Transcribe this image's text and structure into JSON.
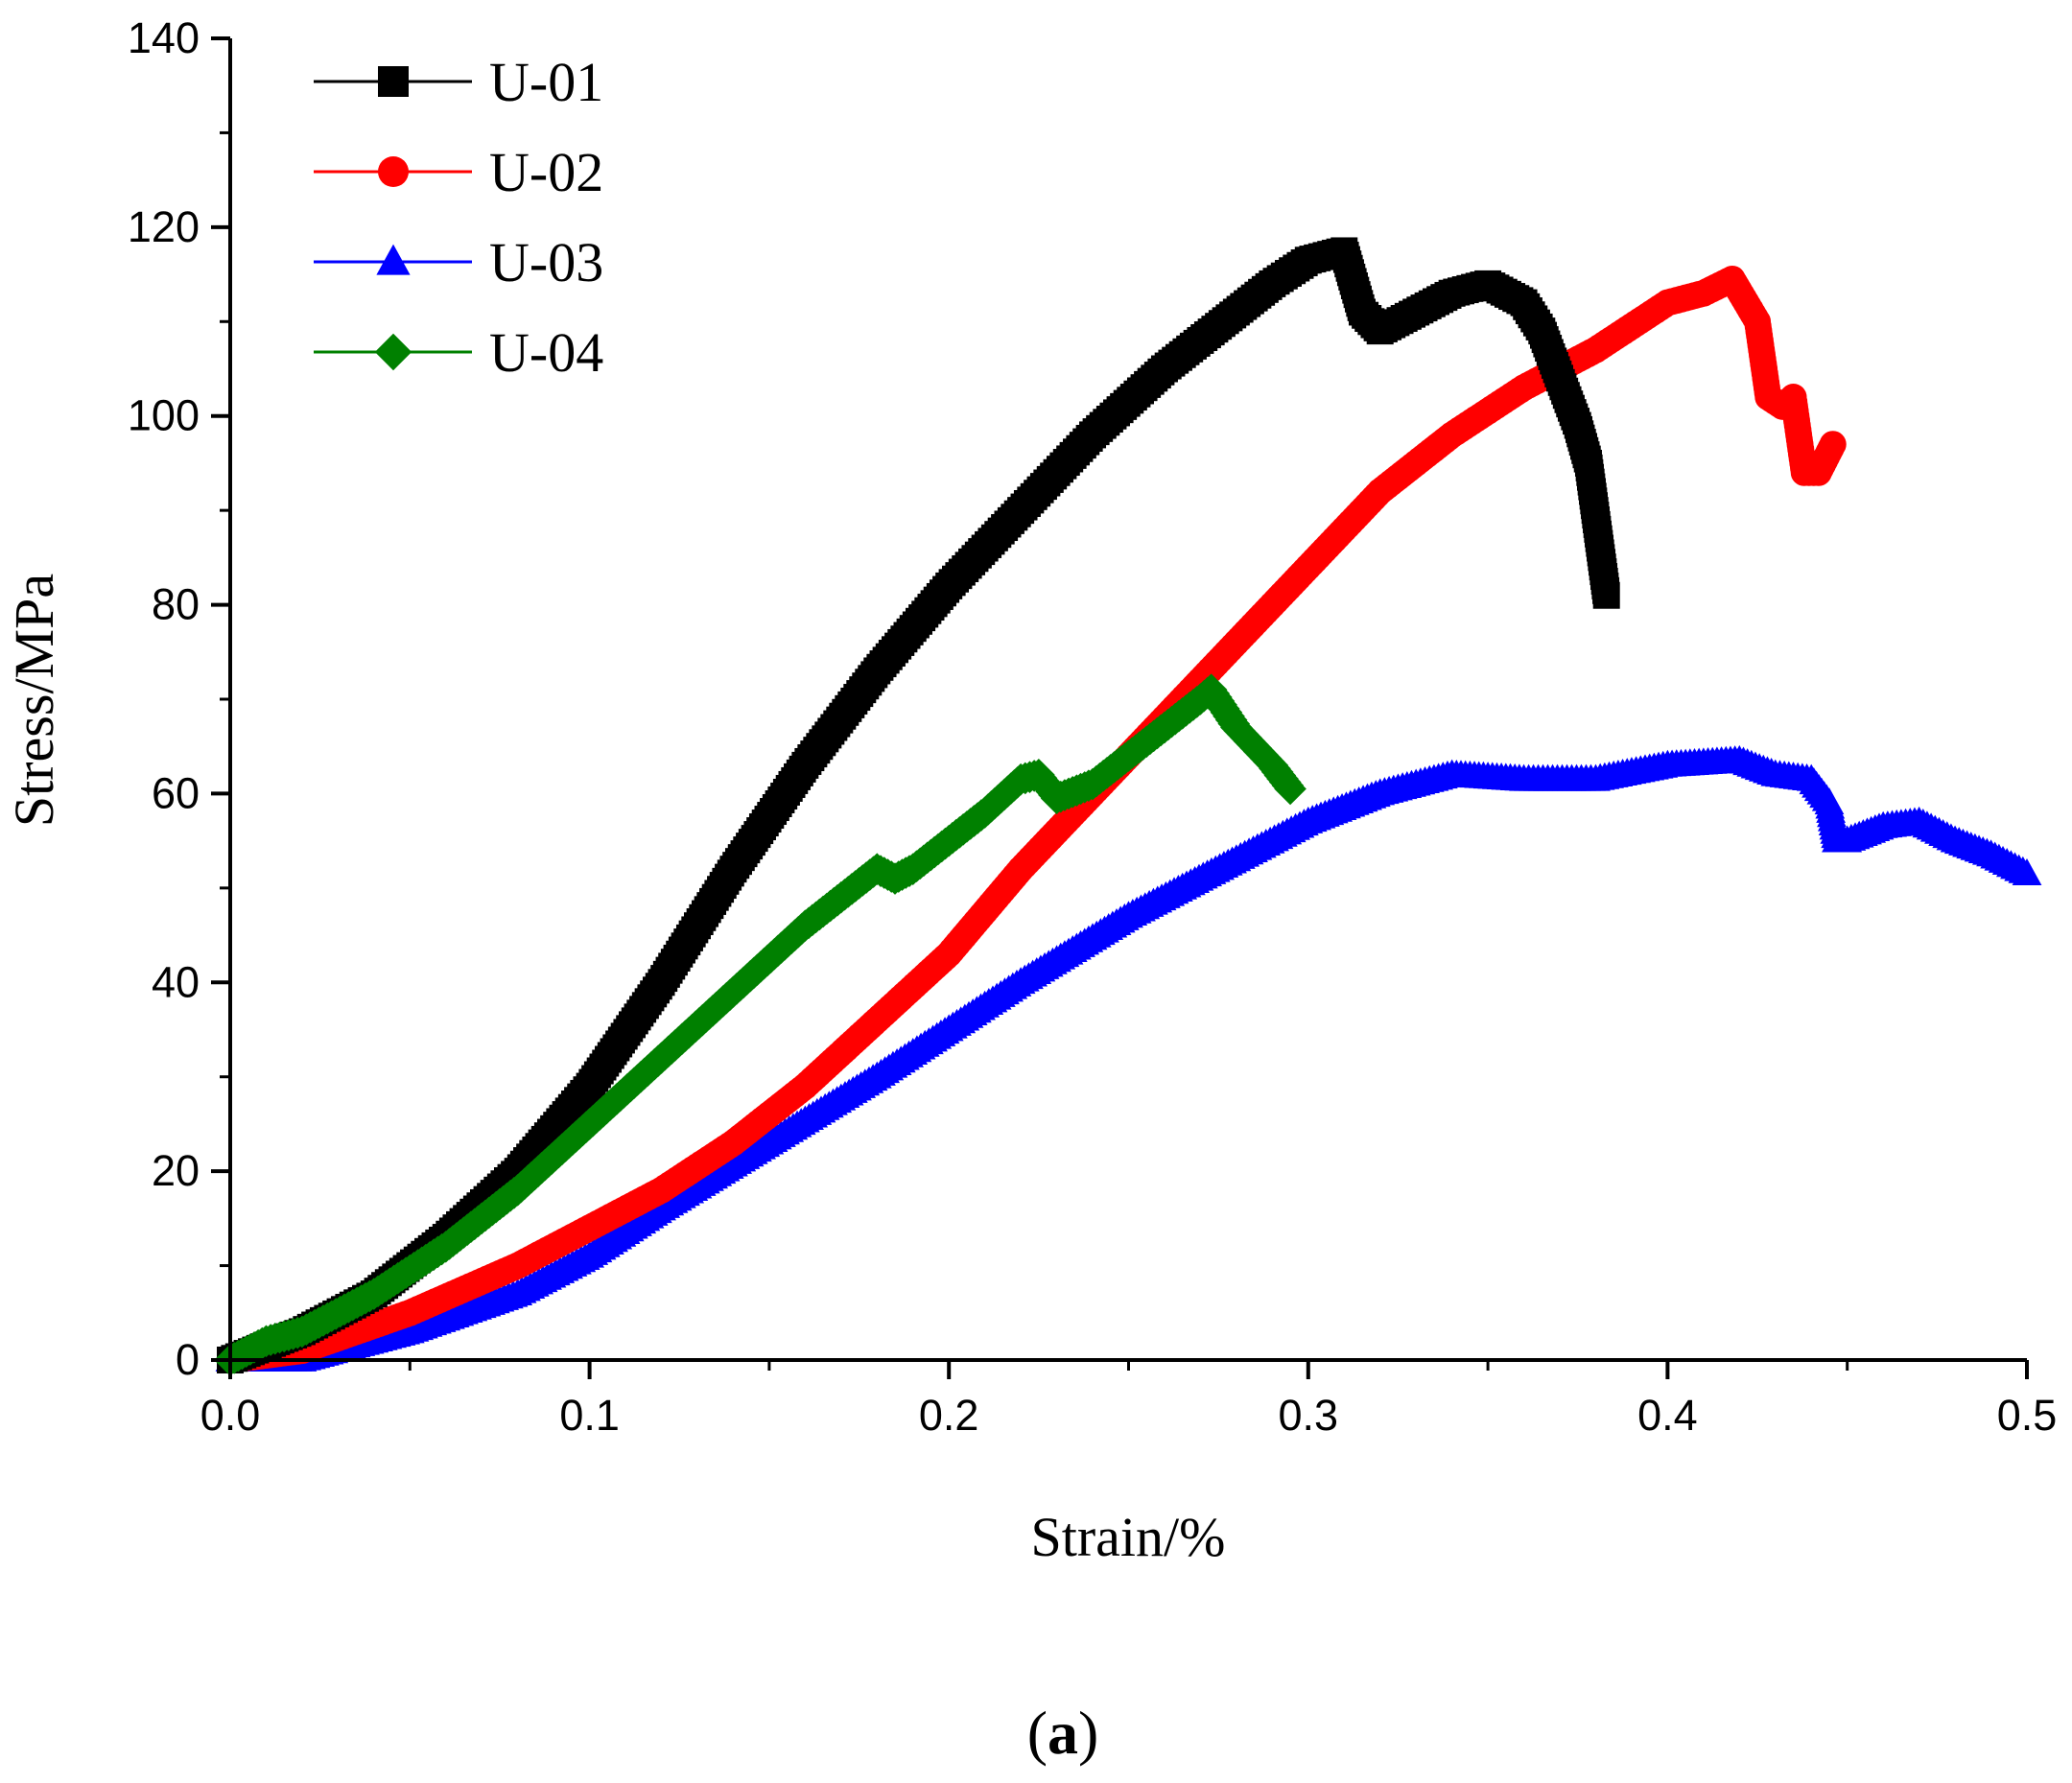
{
  "caption": {
    "open": "(",
    "letter": "a",
    "close": ")"
  },
  "chart_data": {
    "type": "line",
    "title": "",
    "xlabel": "Strain/%",
    "ylabel": "Stress/MPa",
    "xlim": [
      0.0,
      0.5
    ],
    "ylim": [
      0,
      140
    ],
    "xticks": [
      "0.0",
      "0.1",
      "0.2",
      "0.3",
      "0.4",
      "0.5"
    ],
    "yticks": [
      "0",
      "20",
      "40",
      "60",
      "80",
      "100",
      "120",
      "140"
    ],
    "legend_position": "top-left",
    "series": [
      {
        "name": "U-01",
        "color": "#000000",
        "marker": "square",
        "points": [
          [
            0.0,
            0
          ],
          [
            0.02,
            3
          ],
          [
            0.04,
            7
          ],
          [
            0.06,
            13
          ],
          [
            0.08,
            20
          ],
          [
            0.1,
            29
          ],
          [
            0.12,
            40
          ],
          [
            0.14,
            52
          ],
          [
            0.16,
            63
          ],
          [
            0.18,
            73
          ],
          [
            0.2,
            82
          ],
          [
            0.22,
            90
          ],
          [
            0.24,
            98
          ],
          [
            0.26,
            105
          ],
          [
            0.28,
            111
          ],
          [
            0.29,
            114
          ],
          [
            0.3,
            116.5
          ],
          [
            0.31,
            117.5
          ],
          [
            0.315,
            111
          ],
          [
            0.32,
            109
          ],
          [
            0.33,
            111
          ],
          [
            0.34,
            113
          ],
          [
            0.35,
            114
          ],
          [
            0.36,
            112
          ],
          [
            0.365,
            109
          ],
          [
            0.37,
            104
          ],
          [
            0.375,
            99
          ],
          [
            0.378,
            95
          ],
          [
            0.383,
            81
          ]
        ]
      },
      {
        "name": "U-02",
        "color": "#ff0000",
        "marker": "circle",
        "points": [
          [
            0.0,
            0
          ],
          [
            0.02,
            1
          ],
          [
            0.05,
            5
          ],
          [
            0.08,
            10
          ],
          [
            0.1,
            14
          ],
          [
            0.12,
            18
          ],
          [
            0.14,
            23
          ],
          [
            0.16,
            29
          ],
          [
            0.18,
            36
          ],
          [
            0.2,
            43
          ],
          [
            0.22,
            52
          ],
          [
            0.24,
            60
          ],
          [
            0.26,
            68
          ],
          [
            0.28,
            76
          ],
          [
            0.3,
            84
          ],
          [
            0.32,
            92
          ],
          [
            0.34,
            98
          ],
          [
            0.36,
            103
          ],
          [
            0.38,
            107
          ],
          [
            0.4,
            112
          ],
          [
            0.41,
            113
          ],
          [
            0.418,
            114.5
          ],
          [
            0.425,
            110
          ],
          [
            0.428,
            102
          ],
          [
            0.432,
            101
          ],
          [
            0.435,
            102
          ],
          [
            0.438,
            94
          ],
          [
            0.442,
            94
          ],
          [
            0.446,
            97
          ]
        ]
      },
      {
        "name": "U-03",
        "color": "#0000ff",
        "marker": "triangle",
        "points": [
          [
            0.0,
            0
          ],
          [
            0.02,
            0
          ],
          [
            0.05,
            3
          ],
          [
            0.08,
            7
          ],
          [
            0.1,
            11
          ],
          [
            0.12,
            16
          ],
          [
            0.15,
            23
          ],
          [
            0.18,
            30
          ],
          [
            0.2,
            35
          ],
          [
            0.22,
            40
          ],
          [
            0.25,
            47
          ],
          [
            0.28,
            53
          ],
          [
            0.3,
            57
          ],
          [
            0.32,
            60
          ],
          [
            0.34,
            62
          ],
          [
            0.36,
            61.5
          ],
          [
            0.38,
            61.5
          ],
          [
            0.4,
            63
          ],
          [
            0.42,
            63.5
          ],
          [
            0.43,
            62
          ],
          [
            0.44,
            61.5
          ],
          [
            0.445,
            59
          ],
          [
            0.447,
            55
          ],
          [
            0.45,
            55
          ],
          [
            0.46,
            56.5
          ],
          [
            0.47,
            57
          ],
          [
            0.48,
            55
          ],
          [
            0.49,
            53.5
          ],
          [
            0.5,
            51.5
          ]
        ]
      },
      {
        "name": "U-04",
        "color": "#008000",
        "marker": "diamond",
        "points": [
          [
            0.0,
            0
          ],
          [
            0.01,
            2
          ],
          [
            0.02,
            3
          ],
          [
            0.04,
            7
          ],
          [
            0.06,
            12
          ],
          [
            0.08,
            18
          ],
          [
            0.1,
            25
          ],
          [
            0.12,
            32
          ],
          [
            0.14,
            39
          ],
          [
            0.16,
            46
          ],
          [
            0.18,
            52
          ],
          [
            0.185,
            51
          ],
          [
            0.19,
            52
          ],
          [
            0.21,
            58
          ],
          [
            0.22,
            61.5
          ],
          [
            0.225,
            62
          ],
          [
            0.23,
            59.5
          ],
          [
            0.24,
            61
          ],
          [
            0.25,
            64
          ],
          [
            0.26,
            67
          ],
          [
            0.27,
            70
          ],
          [
            0.273,
            71
          ],
          [
            0.28,
            67
          ],
          [
            0.29,
            63
          ],
          [
            0.295,
            60.5
          ]
        ]
      }
    ]
  }
}
